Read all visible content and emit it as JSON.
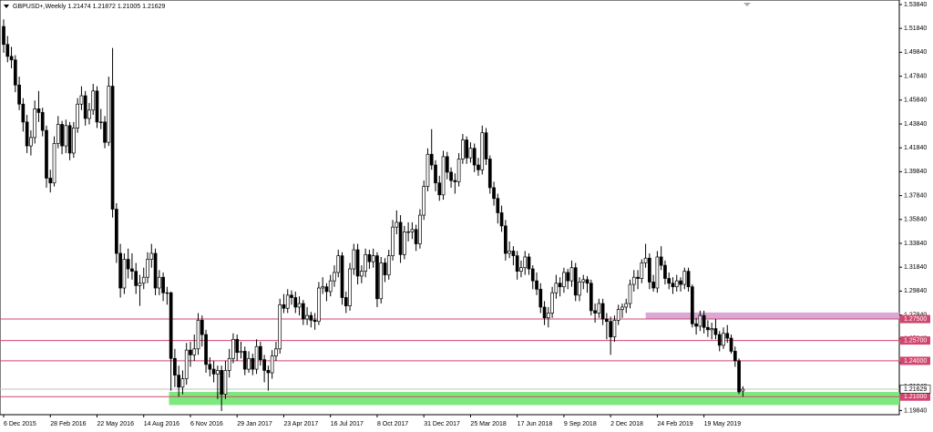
{
  "chart_data": {
    "type": "candlestick",
    "title": "GBPUSD+,Weekly  1.21474 1.21872 1.21005 1.21629",
    "up_color": "#ffffff",
    "down_color": "#000000",
    "edge_color": "#000000",
    "xlim": [
      -0.94,
      230.2
    ],
    "ylim": [
      1.1949,
      1.5422
    ],
    "xticks": [
      {
        "value": 0,
        "label": "6 Dec 2015"
      },
      {
        "value": 12,
        "label": "28 Feb 2016"
      },
      {
        "value": 24,
        "label": "22 May 2016"
      },
      {
        "value": 36,
        "label": "14 Aug 2016"
      },
      {
        "value": 48,
        "label": "6 Nov 2016"
      },
      {
        "value": 60,
        "label": "29 Jan 2017"
      },
      {
        "value": 72,
        "label": "23 Apr 2017"
      },
      {
        "value": 84,
        "label": "16 Jul 2017"
      },
      {
        "value": 96,
        "label": "8 Oct 2017"
      },
      {
        "value": 108,
        "label": "31 Dec 2017"
      },
      {
        "value": 120,
        "label": "25 Mar 2018"
      },
      {
        "value": 132,
        "label": "17 Jun 2018"
      },
      {
        "value": 144,
        "label": "9 Sep 2018"
      },
      {
        "value": 156,
        "label": "2 Dec 2018"
      },
      {
        "value": 168,
        "label": "24 Feb 2019"
      },
      {
        "value": 180,
        "label": "19 May 2019"
      }
    ],
    "yticks": [
      {
        "value": 1.5384,
        "label": "1.53840"
      },
      {
        "value": 1.5184,
        "label": "1.51840"
      },
      {
        "value": 1.4984,
        "label": "1.49840"
      },
      {
        "value": 1.4784,
        "label": "1.47840"
      },
      {
        "value": 1.4584,
        "label": "1.45840"
      },
      {
        "value": 1.4384,
        "label": "1.43840"
      },
      {
        "value": 1.4184,
        "label": "1.41840"
      },
      {
        "value": 1.3984,
        "label": "1.39840"
      },
      {
        "value": 1.3784,
        "label": "1.37840"
      },
      {
        "value": 1.3584,
        "label": "1.35840"
      },
      {
        "value": 1.3384,
        "label": "1.33840"
      },
      {
        "value": 1.3184,
        "label": "1.31840"
      },
      {
        "value": 1.2984,
        "label": "1.29840"
      },
      {
        "value": 1.2784,
        "label": "1.27840"
      },
      {
        "value": 1.2584,
        "label": "1.25840"
      },
      {
        "value": 1.2384,
        "label": "1.23840"
      },
      {
        "value": 1.2184,
        "label": "1.21840"
      },
      {
        "value": 1.1984,
        "label": "1.19840"
      }
    ],
    "zones": [
      {
        "from": 1.275,
        "to": 1.2805,
        "start": 165,
        "color": "#d9a9d6"
      },
      {
        "from": 1.203,
        "to": 1.214,
        "start": 42.5,
        "color": "#7ee87e"
      }
    ],
    "levels": [
      {
        "value": 1.275,
        "label": "1.27500"
      },
      {
        "value": 1.257,
        "label": "1.25700"
      },
      {
        "value": 1.24,
        "label": "1.24000"
      },
      {
        "value": 1.21,
        "label": "1.21000"
      }
    ],
    "level_color": "#d2456e",
    "current_price": {
      "value": 1.21629,
      "label": "1.21629"
    },
    "ohlc": [
      [
        1.52,
        1.526,
        1.498,
        1.505
      ],
      [
        1.505,
        1.512,
        1.49,
        1.495
      ],
      [
        1.495,
        1.503,
        1.485,
        1.492
      ],
      [
        1.492,
        1.496,
        1.465,
        1.471
      ],
      [
        1.471,
        1.478,
        1.45,
        1.455
      ],
      [
        1.455,
        1.46,
        1.432,
        1.44
      ],
      [
        1.44,
        1.446,
        1.414,
        1.42
      ],
      [
        1.42,
        1.433,
        1.412,
        1.427
      ],
      [
        1.427,
        1.458,
        1.422,
        1.451
      ],
      [
        1.451,
        1.466,
        1.44,
        1.448
      ],
      [
        1.448,
        1.452,
        1.428,
        1.433
      ],
      [
        1.433,
        1.437,
        1.385,
        1.393
      ],
      [
        1.393,
        1.4,
        1.381,
        1.389
      ],
      [
        1.389,
        1.428,
        1.386,
        1.422
      ],
      [
        1.422,
        1.445,
        1.418,
        1.438
      ],
      [
        1.438,
        1.441,
        1.413,
        1.42
      ],
      [
        1.42,
        1.442,
        1.414,
        1.437
      ],
      [
        1.437,
        1.44,
        1.408,
        1.414
      ],
      [
        1.414,
        1.44,
        1.41,
        1.435
      ],
      [
        1.435,
        1.46,
        1.431,
        1.455
      ],
      [
        1.455,
        1.47,
        1.45,
        1.462
      ],
      [
        1.462,
        1.466,
        1.437,
        1.443
      ],
      [
        1.443,
        1.456,
        1.438,
        1.45
      ],
      [
        1.45,
        1.472,
        1.446,
        1.466
      ],
      [
        1.466,
        1.47,
        1.435,
        1.44
      ],
      [
        1.44,
        1.451,
        1.434,
        1.44
      ],
      [
        1.44,
        1.445,
        1.418,
        1.423
      ],
      [
        1.423,
        1.478,
        1.42,
        1.47
      ],
      [
        1.47,
        1.502,
        1.36,
        1.367
      ],
      [
        1.367,
        1.372,
        1.322,
        1.33
      ],
      [
        1.33,
        1.338,
        1.293,
        1.301
      ],
      [
        1.301,
        1.33,
        1.296,
        1.325
      ],
      [
        1.325,
        1.334,
        1.309,
        1.317
      ],
      [
        1.317,
        1.33,
        1.308,
        1.315
      ],
      [
        1.315,
        1.322,
        1.296,
        1.303
      ],
      [
        1.303,
        1.312,
        1.286,
        1.305
      ],
      [
        1.305,
        1.318,
        1.3,
        1.31
      ],
      [
        1.31,
        1.331,
        1.305,
        1.325
      ],
      [
        1.325,
        1.338,
        1.318,
        1.33
      ],
      [
        1.33,
        1.334,
        1.295,
        1.301
      ],
      [
        1.301,
        1.316,
        1.295,
        1.31
      ],
      [
        1.31,
        1.314,
        1.29,
        1.297
      ],
      [
        1.297,
        1.302,
        1.287,
        1.297
      ],
      [
        1.297,
        1.298,
        1.215,
        1.242
      ],
      [
        1.242,
        1.25,
        1.218,
        1.228
      ],
      [
        1.228,
        1.236,
        1.21,
        1.218
      ],
      [
        1.218,
        1.232,
        1.212,
        1.225
      ],
      [
        1.225,
        1.255,
        1.22,
        1.249
      ],
      [
        1.249,
        1.256,
        1.235,
        1.245
      ],
      [
        1.245,
        1.262,
        1.24,
        1.25
      ],
      [
        1.25,
        1.28,
        1.245,
        1.274
      ],
      [
        1.274,
        1.278,
        1.252,
        1.262
      ],
      [
        1.262,
        1.266,
        1.23,
        1.237
      ],
      [
        1.237,
        1.243,
        1.227,
        1.233
      ],
      [
        1.233,
        1.24,
        1.222,
        1.229
      ],
      [
        1.229,
        1.236,
        1.208,
        1.232
      ],
      [
        1.232,
        1.236,
        1.198,
        1.212
      ],
      [
        1.212,
        1.24,
        1.208,
        1.232
      ],
      [
        1.232,
        1.25,
        1.226,
        1.242
      ],
      [
        1.242,
        1.263,
        1.238,
        1.258
      ],
      [
        1.258,
        1.262,
        1.24,
        1.247
      ],
      [
        1.247,
        1.256,
        1.242,
        1.248
      ],
      [
        1.248,
        1.252,
        1.228,
        1.233
      ],
      [
        1.233,
        1.248,
        1.23,
        1.242
      ],
      [
        1.242,
        1.246,
        1.228,
        1.233
      ],
      [
        1.233,
        1.258,
        1.229,
        1.252
      ],
      [
        1.252,
        1.256,
        1.236,
        1.241
      ],
      [
        1.241,
        1.245,
        1.222,
        1.232
      ],
      [
        1.232,
        1.236,
        1.215,
        1.23
      ],
      [
        1.23,
        1.249,
        1.225,
        1.244
      ],
      [
        1.244,
        1.256,
        1.24,
        1.25
      ],
      [
        1.25,
        1.292,
        1.246,
        1.287
      ],
      [
        1.287,
        1.296,
        1.28,
        1.284
      ],
      [
        1.284,
        1.3,
        1.28,
        1.295
      ],
      [
        1.295,
        1.299,
        1.287,
        1.293
      ],
      [
        1.293,
        1.298,
        1.28,
        1.285
      ],
      [
        1.285,
        1.294,
        1.278,
        1.288
      ],
      [
        1.288,
        1.291,
        1.27,
        1.275
      ],
      [
        1.275,
        1.285,
        1.27,
        1.278
      ],
      [
        1.278,
        1.281,
        1.268,
        1.274
      ],
      [
        1.274,
        1.28,
        1.266,
        1.273
      ],
      [
        1.273,
        1.306,
        1.27,
        1.301
      ],
      [
        1.301,
        1.31,
        1.296,
        1.302
      ],
      [
        1.302,
        1.305,
        1.29,
        1.298
      ],
      [
        1.298,
        1.312,
        1.294,
        1.307
      ],
      [
        1.307,
        1.32,
        1.302,
        1.314
      ],
      [
        1.314,
        1.333,
        1.31,
        1.328
      ],
      [
        1.328,
        1.331,
        1.287,
        1.293
      ],
      [
        1.293,
        1.298,
        1.28,
        1.286
      ],
      [
        1.286,
        1.322,
        1.282,
        1.317
      ],
      [
        1.317,
        1.338,
        1.312,
        1.333
      ],
      [
        1.333,
        1.338,
        1.304,
        1.311
      ],
      [
        1.311,
        1.32,
        1.305,
        1.315
      ],
      [
        1.315,
        1.334,
        1.31,
        1.329
      ],
      [
        1.329,
        1.333,
        1.317,
        1.323
      ],
      [
        1.323,
        1.334,
        1.318,
        1.328
      ],
      [
        1.328,
        1.331,
        1.285,
        1.292
      ],
      [
        1.292,
        1.327,
        1.288,
        1.322
      ],
      [
        1.322,
        1.326,
        1.306,
        1.312
      ],
      [
        1.312,
        1.333,
        1.308,
        1.328
      ],
      [
        1.328,
        1.358,
        1.324,
        1.352
      ],
      [
        1.352,
        1.366,
        1.346,
        1.356
      ],
      [
        1.356,
        1.362,
        1.322,
        1.329
      ],
      [
        1.329,
        1.353,
        1.325,
        1.348
      ],
      [
        1.348,
        1.356,
        1.34,
        1.348
      ],
      [
        1.348,
        1.356,
        1.342,
        1.35
      ],
      [
        1.35,
        1.354,
        1.332,
        1.338
      ],
      [
        1.338,
        1.367,
        1.334,
        1.362
      ],
      [
        1.362,
        1.391,
        1.358,
        1.386
      ],
      [
        1.386,
        1.418,
        1.382,
        1.413
      ],
      [
        1.413,
        1.434,
        1.4,
        1.404
      ],
      [
        1.404,
        1.408,
        1.382,
        1.389
      ],
      [
        1.389,
        1.395,
        1.374,
        1.379
      ],
      [
        1.379,
        1.416,
        1.375,
        1.411
      ],
      [
        1.411,
        1.415,
        1.392,
        1.398
      ],
      [
        1.398,
        1.402,
        1.385,
        1.391
      ],
      [
        1.391,
        1.397,
        1.38,
        1.39
      ],
      [
        1.39,
        1.414,
        1.386,
        1.409
      ],
      [
        1.409,
        1.43,
        1.405,
        1.425
      ],
      [
        1.425,
        1.428,
        1.405,
        1.41
      ],
      [
        1.41,
        1.423,
        1.406,
        1.418
      ],
      [
        1.418,
        1.422,
        1.398,
        1.404
      ],
      [
        1.404,
        1.41,
        1.395,
        1.4
      ],
      [
        1.4,
        1.437,
        1.396,
        1.431
      ],
      [
        1.431,
        1.435,
        1.404,
        1.409
      ],
      [
        1.409,
        1.412,
        1.38,
        1.385
      ],
      [
        1.385,
        1.39,
        1.37,
        1.376
      ],
      [
        1.376,
        1.38,
        1.355,
        1.364
      ],
      [
        1.364,
        1.37,
        1.348,
        1.353
      ],
      [
        1.353,
        1.358,
        1.324,
        1.33
      ],
      [
        1.33,
        1.34,
        1.326,
        1.332
      ],
      [
        1.332,
        1.336,
        1.32,
        1.328
      ],
      [
        1.328,
        1.332,
        1.308,
        1.315
      ],
      [
        1.315,
        1.324,
        1.31,
        1.318
      ],
      [
        1.318,
        1.332,
        1.312,
        1.327
      ],
      [
        1.327,
        1.33,
        1.312,
        1.317
      ],
      [
        1.317,
        1.32,
        1.3,
        1.307
      ],
      [
        1.307,
        1.314,
        1.295,
        1.3
      ],
      [
        1.3,
        1.305,
        1.28,
        1.285
      ],
      [
        1.285,
        1.29,
        1.27,
        1.276
      ],
      [
        1.276,
        1.285,
        1.268,
        1.28
      ],
      [
        1.28,
        1.302,
        1.276,
        1.297
      ],
      [
        1.297,
        1.312,
        1.292,
        1.305
      ],
      [
        1.305,
        1.31,
        1.294,
        1.302
      ],
      [
        1.302,
        1.318,
        1.297,
        1.314
      ],
      [
        1.314,
        1.317,
        1.3,
        1.307
      ],
      [
        1.307,
        1.324,
        1.302,
        1.318
      ],
      [
        1.318,
        1.322,
        1.29,
        1.295
      ],
      [
        1.295,
        1.31,
        1.29,
        1.306
      ],
      [
        1.306,
        1.312,
        1.3,
        1.308
      ],
      [
        1.308,
        1.311,
        1.297,
        1.305
      ],
      [
        1.305,
        1.308,
        1.278,
        1.282
      ],
      [
        1.282,
        1.288,
        1.272,
        1.28
      ],
      [
        1.28,
        1.292,
        1.276,
        1.288
      ],
      [
        1.288,
        1.292,
        1.27,
        1.275
      ],
      [
        1.275,
        1.28,
        1.258,
        1.273
      ],
      [
        1.273,
        1.277,
        1.245,
        1.26
      ],
      [
        1.26,
        1.278,
        1.256,
        1.274
      ],
      [
        1.274,
        1.287,
        1.27,
        1.283
      ],
      [
        1.283,
        1.288,
        1.276,
        1.285
      ],
      [
        1.285,
        1.292,
        1.28,
        1.288
      ],
      [
        1.288,
        1.308,
        1.284,
        1.304
      ],
      [
        1.304,
        1.316,
        1.298,
        1.31
      ],
      [
        1.31,
        1.316,
        1.3,
        1.309
      ],
      [
        1.309,
        1.325,
        1.305,
        1.322
      ],
      [
        1.322,
        1.338,
        1.318,
        1.326
      ],
      [
        1.326,
        1.33,
        1.3,
        1.306
      ],
      [
        1.306,
        1.312,
        1.298,
        1.301
      ],
      [
        1.301,
        1.332,
        1.297,
        1.327
      ],
      [
        1.327,
        1.336,
        1.316,
        1.32
      ],
      [
        1.32,
        1.324,
        1.304,
        1.309
      ],
      [
        1.309,
        1.314,
        1.3,
        1.305
      ],
      [
        1.305,
        1.31,
        1.296,
        1.302
      ],
      [
        1.302,
        1.312,
        1.298,
        1.307
      ],
      [
        1.307,
        1.31,
        1.298,
        1.304
      ],
      [
        1.304,
        1.318,
        1.3,
        1.315
      ],
      [
        1.315,
        1.318,
        1.298,
        1.302
      ],
      [
        1.302,
        1.304,
        1.268,
        1.271
      ],
      [
        1.271,
        1.276,
        1.262,
        1.269
      ],
      [
        1.269,
        1.282,
        1.265,
        1.278
      ],
      [
        1.278,
        1.282,
        1.263,
        1.268
      ],
      [
        1.268,
        1.274,
        1.26,
        1.266
      ],
      [
        1.266,
        1.272,
        1.258,
        1.267
      ],
      [
        1.267,
        1.275,
        1.258,
        1.262
      ],
      [
        1.262,
        1.265,
        1.248,
        1.253
      ],
      [
        1.253,
        1.268,
        1.25,
        1.263
      ],
      [
        1.263,
        1.27,
        1.255,
        1.259
      ],
      [
        1.259,
        1.262,
        1.246,
        1.248
      ],
      [
        1.248,
        1.252,
        1.235,
        1.24
      ],
      [
        1.24,
        1.242,
        1.212,
        1.214
      ],
      [
        1.21474,
        1.21872,
        1.21005,
        1.21629
      ]
    ]
  }
}
